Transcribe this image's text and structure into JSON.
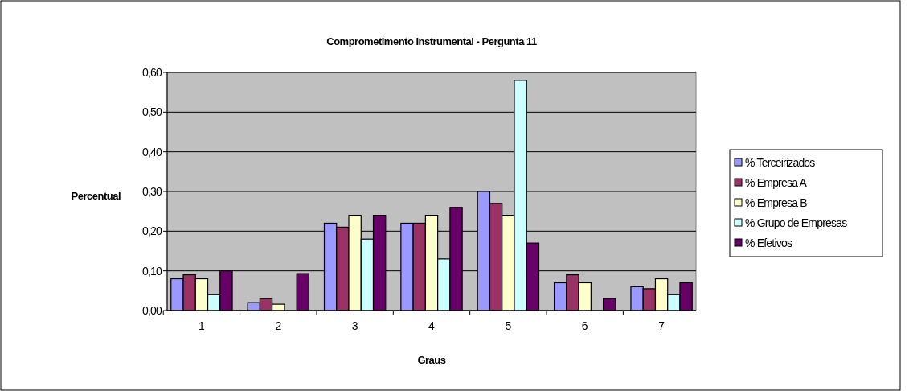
{
  "chart_data": {
    "type": "bar",
    "title": "Comprometimento Instrumental - Pergunta 11",
    "xlabel": "Graus",
    "ylabel": "Percentual",
    "categories": [
      "1",
      "2",
      "3",
      "4",
      "5",
      "6",
      "7"
    ],
    "series": [
      {
        "name": "% Terceirizados",
        "color": "#9999ff",
        "values": [
          0.08,
          0.02,
          0.22,
          0.22,
          0.3,
          0.07,
          0.06
        ]
      },
      {
        "name": "% Empresa A",
        "color": "#993366",
        "values": [
          0.09,
          0.03,
          0.21,
          0.22,
          0.27,
          0.09,
          0.055
        ]
      },
      {
        "name": "% Empresa B",
        "color": "#ffffcc",
        "values": [
          0.08,
          0.016,
          0.24,
          0.24,
          0.24,
          0.07,
          0.08
        ]
      },
      {
        "name": "% Grupo de Empresas",
        "color": "#ccffff",
        "values": [
          0.04,
          0.0,
          0.18,
          0.13,
          0.58,
          0.0,
          0.04
        ]
      },
      {
        "name": "% Efetivos",
        "color": "#660066",
        "values": [
          0.1,
          0.093,
          0.24,
          0.26,
          0.17,
          0.03,
          0.07
        ]
      }
    ],
    "ylim": [
      0,
      0.6
    ],
    "yticks": [
      {
        "value": 0,
        "label": "0,00"
      },
      {
        "value": 0.1,
        "label": "0,10"
      },
      {
        "value": 0.2,
        "label": "0,20"
      },
      {
        "value": 0.3,
        "label": "0,30"
      },
      {
        "value": 0.4,
        "label": "0,40"
      },
      {
        "value": 0.5,
        "label": "0,50"
      },
      {
        "value": 0.6,
        "label": "0,60"
      }
    ],
    "grid": "y",
    "legend": "right"
  }
}
